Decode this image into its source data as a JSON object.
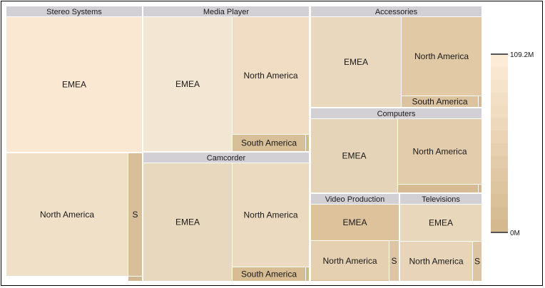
{
  "chart_data": {
    "type": "treemap",
    "groups": [
      {
        "name": "Stereo Systems",
        "cells": [
          {
            "label": "EMEA",
            "color": "#fbe8d2"
          },
          {
            "label": "North America",
            "color": "#f1e0c8"
          },
          {
            "label": "S",
            "color": "#d8bf9a"
          },
          {
            "label": "",
            "color": "#d2b891"
          }
        ]
      },
      {
        "name": "Media Player",
        "cells": [
          {
            "label": "EMEA",
            "color": "#f3e6d3"
          },
          {
            "label": "North America",
            "color": "#f0ddc3"
          },
          {
            "label": "South America",
            "color": "#d9bf98"
          },
          {
            "label": "",
            "color": "#d3b890"
          }
        ]
      },
      {
        "name": "Camcorder",
        "cells": [
          {
            "label": "EMEA",
            "color": "#e8d8bd"
          },
          {
            "label": "North America",
            "color": "#ecdac0"
          },
          {
            "label": "South America",
            "color": "#d7bc94"
          },
          {
            "label": "",
            "color": "#d1b68e"
          }
        ]
      },
      {
        "name": "Accessories",
        "cells": [
          {
            "label": "EMEA",
            "color": "#e9d8be"
          },
          {
            "label": "North America",
            "color": "#e1c9a6"
          },
          {
            "label": "South America",
            "color": "#dcc39f"
          },
          {
            "label": "",
            "color": "#d4b991"
          }
        ]
      },
      {
        "name": "Computers",
        "cells": [
          {
            "label": "EMEA",
            "color": "#e6d4b8"
          },
          {
            "label": "North America",
            "color": "#e3ccab"
          },
          {
            "label": "",
            "color": "#d6bb94"
          },
          {
            "label": "",
            "color": "#d3b890"
          }
        ]
      },
      {
        "name": "Video Production",
        "cells": [
          {
            "label": "EMEA",
            "color": "#ddc29c"
          },
          {
            "label": "North America",
            "color": "#e5d0b2"
          },
          {
            "label": "S",
            "color": "#dcc6a5"
          },
          {
            "label": "",
            "color": "#d2b78f"
          }
        ]
      },
      {
        "name": "Televisions",
        "cells": [
          {
            "label": "EMEA",
            "color": "#e9d7bc"
          },
          {
            "label": "North America",
            "color": "#e8d5b9"
          },
          {
            "label": "S",
            "color": "#dcc5a3"
          }
        ]
      }
    ],
    "legend": {
      "max_label": "109.2M",
      "min_label": "0M",
      "color_max": "#fcebd6",
      "color_min": "#d4b98f",
      "steps": 14,
      "placement": "right"
    }
  }
}
